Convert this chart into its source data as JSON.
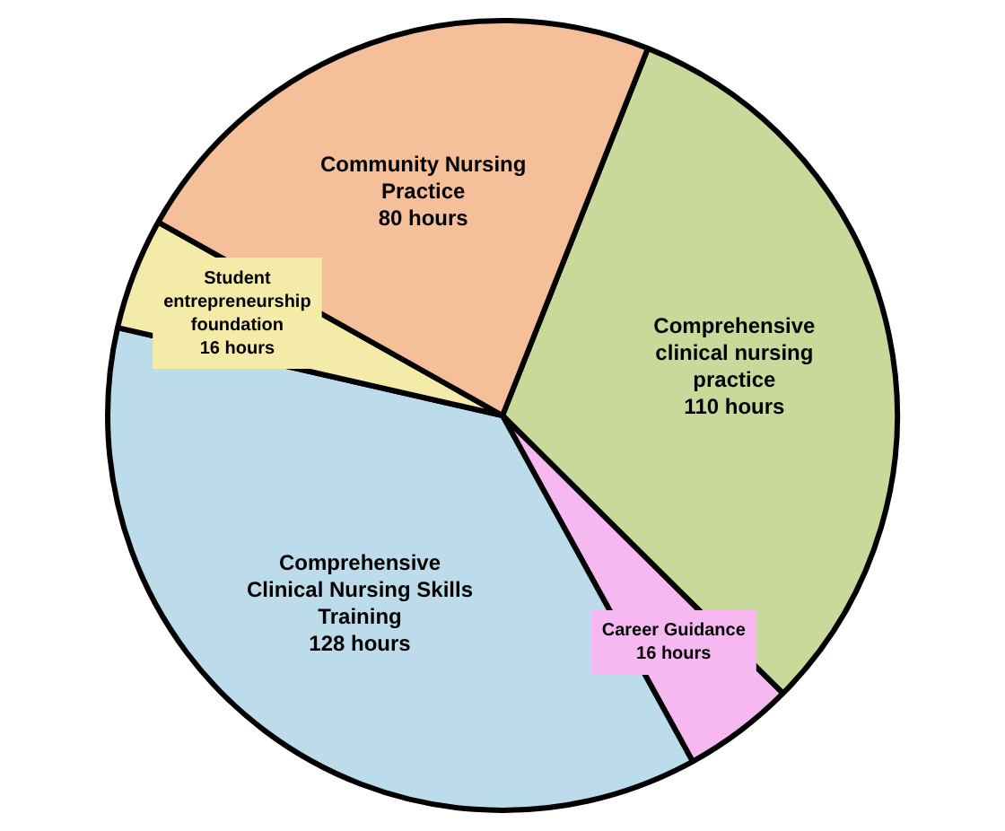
{
  "chart_data": {
    "type": "pie",
    "categories": [
      "Comprehensive clinical nursing practice",
      "Career Guidance",
      "Comprehensive Clinical Nursing Skills Training",
      "Student entrepreneurship foundation",
      "Community Nursing Practice"
    ],
    "values": [
      110,
      16,
      128,
      16,
      80
    ],
    "value_labels": [
      "110 hours",
      "16 hours",
      "128 hours",
      "16 hours",
      "80 hours"
    ],
    "colors": [
      "#c8d99a",
      "#f5b8f0",
      "#bcdcec",
      "#f5eba8",
      "#f5bf9a"
    ],
    "legend": false
  }
}
